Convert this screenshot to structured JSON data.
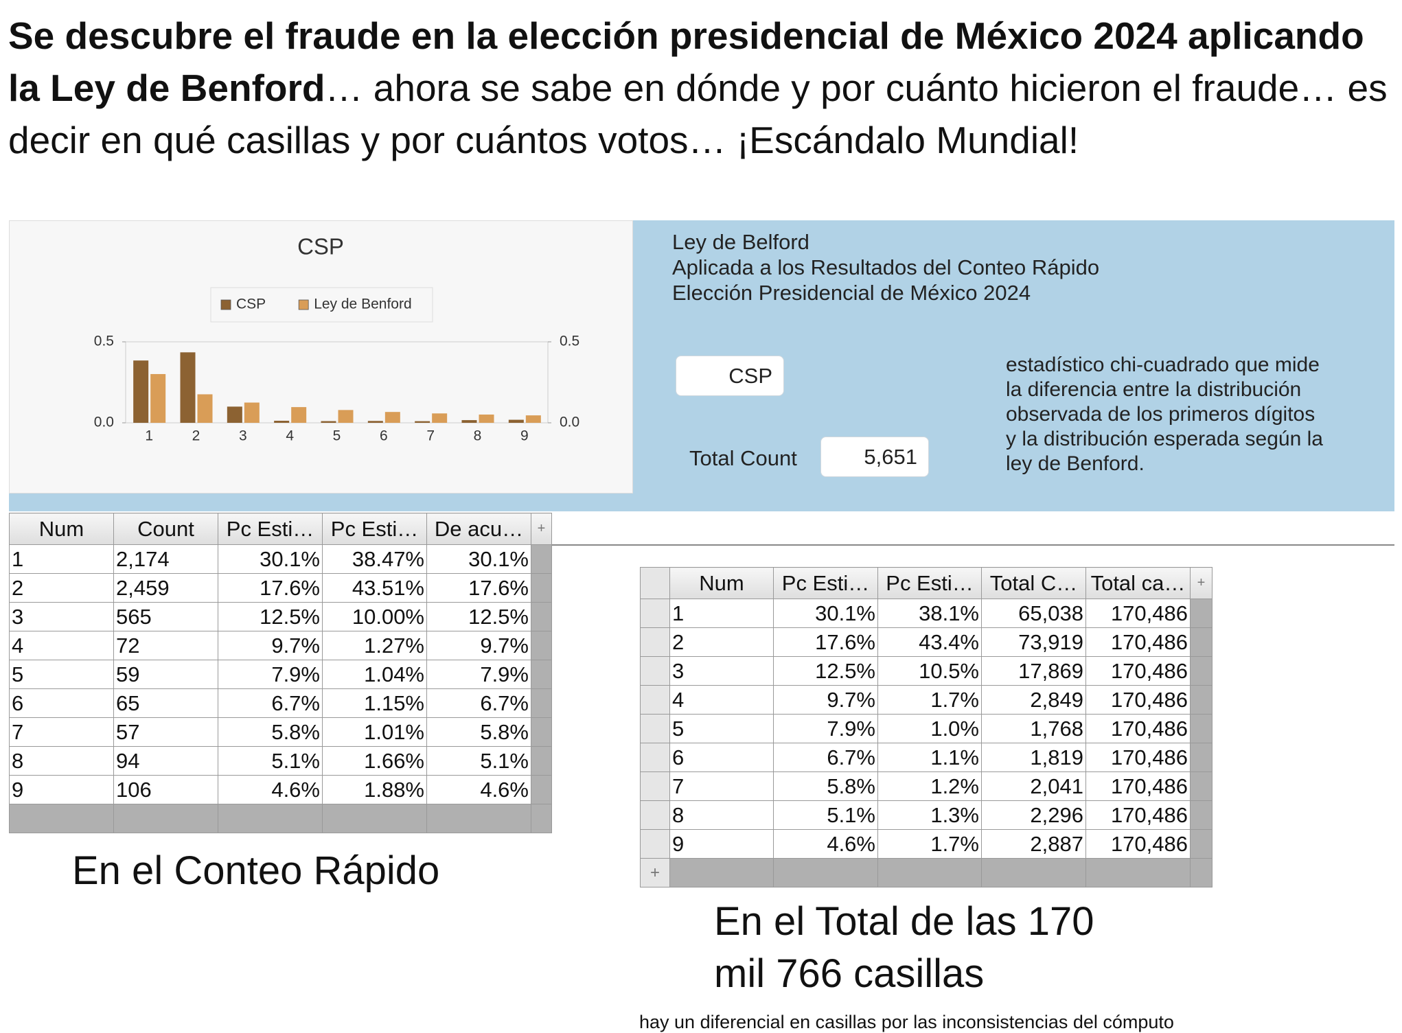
{
  "headline": {
    "bold": "Se descubre el fraude en la elección presidencial de México 2024 aplicando la Ley de Benford",
    "rest": "… ahora se sabe en dónde y por cuánto hicieron el fraude… es decir en qué casillas y por cuántos votos… ¡Escándalo Mundial!"
  },
  "chart_data": {
    "type": "bar",
    "title": "CSP",
    "categories": [
      "1",
      "2",
      "3",
      "4",
      "5",
      "6",
      "7",
      "8",
      "9"
    ],
    "series": [
      {
        "name": "CSP",
        "color": "#8c6232",
        "values": [
          0.3847,
          0.4351,
          0.1,
          0.0127,
          0.0104,
          0.0115,
          0.0101,
          0.0166,
          0.0188
        ]
      },
      {
        "name": "Ley de Benford",
        "color": "#d99d57",
        "values": [
          0.301,
          0.176,
          0.125,
          0.097,
          0.079,
          0.067,
          0.058,
          0.051,
          0.046
        ]
      }
    ],
    "ylim": [
      0,
      0.5
    ],
    "yticks": [
      {
        "value": 0,
        "label": "0.0"
      },
      0.5
    ],
    "y2lim": [
      0,
      0.5
    ],
    "y2ticks": [
      {
        "value": 0,
        "label": "0.0"
      },
      0.5
    ],
    "legend": "top"
  },
  "panel": {
    "lines": [
      "Ley de Belford",
      "Aplicada a los Resultados del Conteo Rápido",
      "Elección Presidencial de México 2024"
    ],
    "selector": "CSP",
    "total_label": "Total Count",
    "total_value": "5,651",
    "description": [
      "estadístico chi-cuadrado que mide",
      "la diferencia entre la distribución",
      "observada de los primeros dígitos",
      "y la distribución esperada según la",
      "ley de Benford."
    ]
  },
  "table1": {
    "columns": [
      "Num",
      "Count",
      "Pc Esti…",
      "Pc Esti…",
      "De acu…"
    ],
    "add_symbol": "+",
    "rows": [
      [
        "1",
        "2,174",
        "30.1%",
        "38.47%",
        "30.1%"
      ],
      [
        "2",
        "2,459",
        "17.6%",
        "43.51%",
        "17.6%"
      ],
      [
        "3",
        "565",
        "12.5%",
        "10.00%",
        "12.5%"
      ],
      [
        "4",
        "72",
        "9.7%",
        "1.27%",
        "9.7%"
      ],
      [
        "5",
        "59",
        "7.9%",
        "1.04%",
        "7.9%"
      ],
      [
        "6",
        "65",
        "6.7%",
        "1.15%",
        "6.7%"
      ],
      [
        "7",
        "57",
        "5.8%",
        "1.01%",
        "5.8%"
      ],
      [
        "8",
        "94",
        "5.1%",
        "1.66%",
        "5.1%"
      ],
      [
        "9",
        "106",
        "4.6%",
        "1.88%",
        "4.6%"
      ]
    ]
  },
  "caption1": "En el Conteo Rápido",
  "table2": {
    "columns": [
      "Num",
      "Pc Esti…",
      "Pc Esti…",
      "Total C…",
      "Total ca…"
    ],
    "add_symbol": "+",
    "rows": [
      [
        "1",
        "30.1%",
        "38.1%",
        "65,038",
        "170,486"
      ],
      [
        "2",
        "17.6%",
        "43.4%",
        "73,919",
        "170,486"
      ],
      [
        "3",
        "12.5%",
        "10.5%",
        "17,869",
        "170,486"
      ],
      [
        "4",
        "9.7%",
        "1.7%",
        "2,849",
        "170,486"
      ],
      [
        "5",
        "7.9%",
        "1.0%",
        "1,768",
        "170,486"
      ],
      [
        "6",
        "6.7%",
        "1.1%",
        "1,819",
        "170,486"
      ],
      [
        "7",
        "5.8%",
        "1.2%",
        "2,041",
        "170,486"
      ],
      [
        "8",
        "5.1%",
        "1.3%",
        "2,296",
        "170,486"
      ],
      [
        "9",
        "4.6%",
        "1.7%",
        "2,887",
        "170,486"
      ]
    ]
  },
  "caption2": {
    "lines": [
      "En el Total de las 170",
      "mil 766 casillas"
    ]
  },
  "footnote": "hay un diferencial en casillas por las inconsistencias del cómputo"
}
